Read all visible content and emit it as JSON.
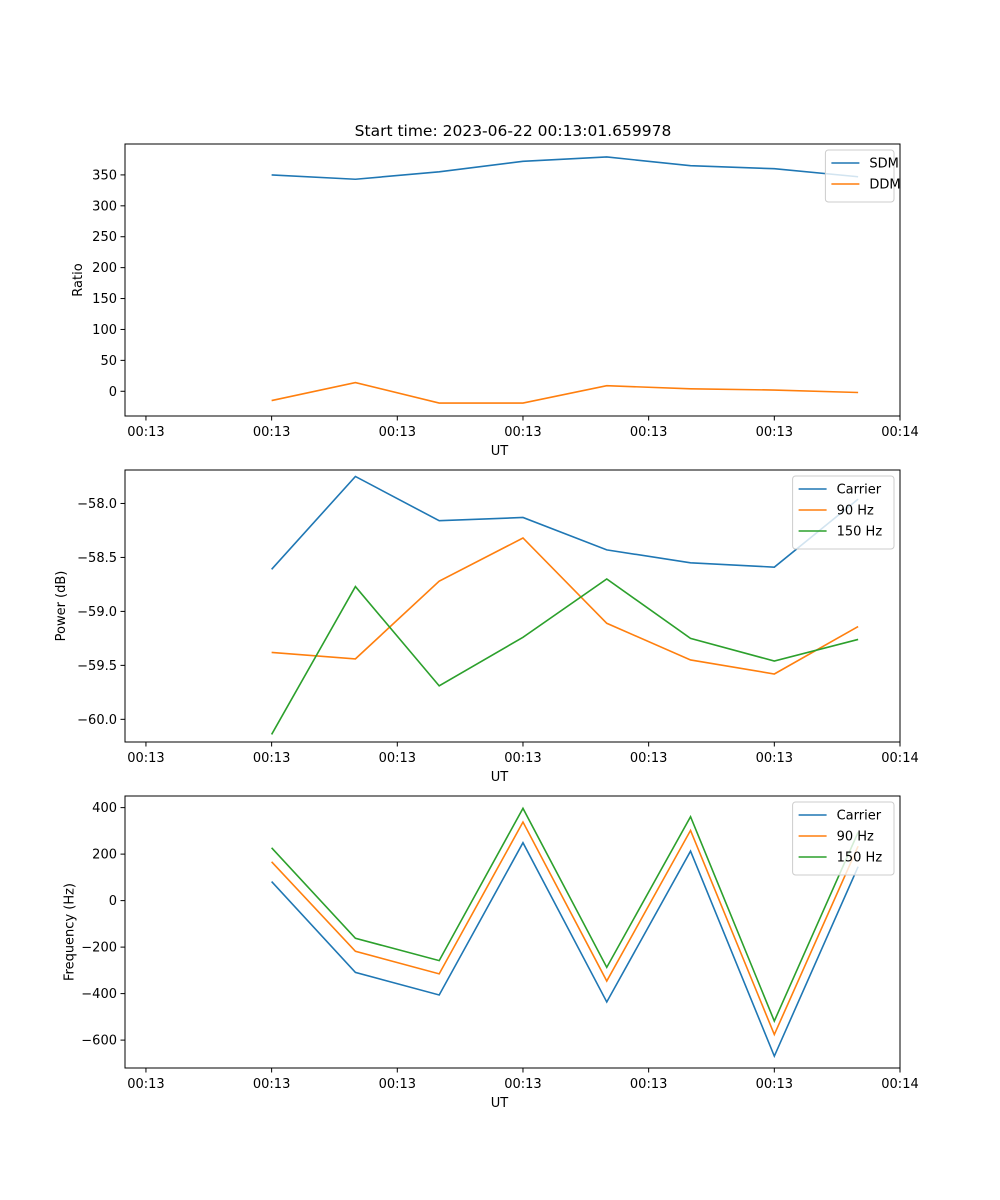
{
  "figure": {
    "title": "Start time: 2023-06-22 00:13:01.659978"
  },
  "colors": {
    "blue": "#1f77b4",
    "orange": "#ff7f0e",
    "green": "#2ca02c"
  },
  "chart_data": [
    {
      "type": "line",
      "title": "Start time: 2023-06-22 00:13:01.659978",
      "xlabel": "UT",
      "ylabel": "Ratio",
      "x_points": [
        1,
        2,
        3,
        4,
        5,
        6,
        7,
        8
      ],
      "x_axis": {
        "range": [
          -0.75,
          8.5
        ],
        "ticks": [
          -0.5,
          1.0,
          2.5,
          4.0,
          5.5,
          7.0,
          8.5
        ],
        "tick_labels": [
          "00:13",
          "00:13",
          "00:13",
          "00:13",
          "00:13",
          "00:13",
          "00:14"
        ]
      },
      "ylim": [
        -40,
        400
      ],
      "y_ticks": [
        0,
        50,
        100,
        150,
        200,
        250,
        300,
        350
      ],
      "y_tick_labels": [
        "0",
        "50",
        "100",
        "150",
        "200",
        "250",
        "300",
        "350"
      ],
      "legend_position": "top-right",
      "grid": false,
      "series": [
        {
          "name": "SDM",
          "color": "#1f77b4",
          "values": [
            350,
            343,
            355,
            372,
            379,
            365,
            360,
            347
          ]
        },
        {
          "name": "DDM",
          "color": "#ff7f0e",
          "values": [
            -15,
            14,
            -19,
            -19,
            9,
            4,
            2,
            -2
          ]
        }
      ]
    },
    {
      "type": "line",
      "xlabel": "UT",
      "ylabel": "Power (dB)",
      "x_points": [
        1,
        2,
        3,
        4,
        5,
        6,
        7,
        8
      ],
      "x_axis": {
        "range": [
          -0.75,
          8.5
        ],
        "ticks": [
          -0.5,
          1.0,
          2.5,
          4.0,
          5.5,
          7.0,
          8.5
        ],
        "tick_labels": [
          "00:13",
          "00:13",
          "00:13",
          "00:13",
          "00:13",
          "00:13",
          "00:14"
        ]
      },
      "ylim": [
        -60.21,
        -57.69
      ],
      "y_ticks": [
        -60.0,
        -59.5,
        -59.0,
        -58.5,
        -58.0
      ],
      "y_tick_labels": [
        "−60.0",
        "−59.5",
        "−59.0",
        "−58.5",
        "−58.0"
      ],
      "legend_position": "top-right",
      "grid": false,
      "series": [
        {
          "name": "Carrier",
          "color": "#1f77b4",
          "values": [
            -58.61,
            -57.75,
            -58.16,
            -58.13,
            -58.43,
            -58.55,
            -58.59,
            -57.96
          ]
        },
        {
          "name": "90 Hz",
          "color": "#ff7f0e",
          "values": [
            -59.38,
            -59.44,
            -58.72,
            -58.32,
            -59.11,
            -59.45,
            -59.58,
            -59.14
          ]
        },
        {
          "name": "150 Hz",
          "color": "#2ca02c",
          "values": [
            -60.14,
            -58.77,
            -59.69,
            -59.24,
            -58.7,
            -59.25,
            -59.46,
            -59.26
          ]
        }
      ]
    },
    {
      "type": "line",
      "xlabel": "UT",
      "ylabel": "Frequency (Hz)",
      "x_points": [
        1,
        2,
        3,
        4,
        5,
        6,
        7,
        8
      ],
      "x_axis": {
        "range": [
          -0.75,
          8.5
        ],
        "ticks": [
          -0.5,
          1.0,
          2.5,
          4.0,
          5.5,
          7.0,
          8.5
        ],
        "tick_labels": [
          "00:13",
          "00:13",
          "00:13",
          "00:13",
          "00:13",
          "00:13",
          "00:14"
        ]
      },
      "ylim": [
        -720,
        450
      ],
      "y_ticks": [
        -600,
        -400,
        -200,
        0,
        200,
        400
      ],
      "y_tick_labels": [
        "−600",
        "−400",
        "−200",
        "0",
        "200",
        "400"
      ],
      "legend_position": "top-right",
      "grid": false,
      "series": [
        {
          "name": "Carrier",
          "color": "#1f77b4",
          "values": [
            82,
            -309,
            -406,
            249,
            -436,
            213,
            -669,
            146
          ]
        },
        {
          "name": "90 Hz",
          "color": "#ff7f0e",
          "values": [
            167,
            -218,
            -315,
            338,
            -346,
            302,
            -576,
            234
          ]
        },
        {
          "name": "150 Hz",
          "color": "#2ca02c",
          "values": [
            227,
            -162,
            -258,
            397,
            -287,
            361,
            -518,
            294
          ]
        }
      ]
    }
  ]
}
